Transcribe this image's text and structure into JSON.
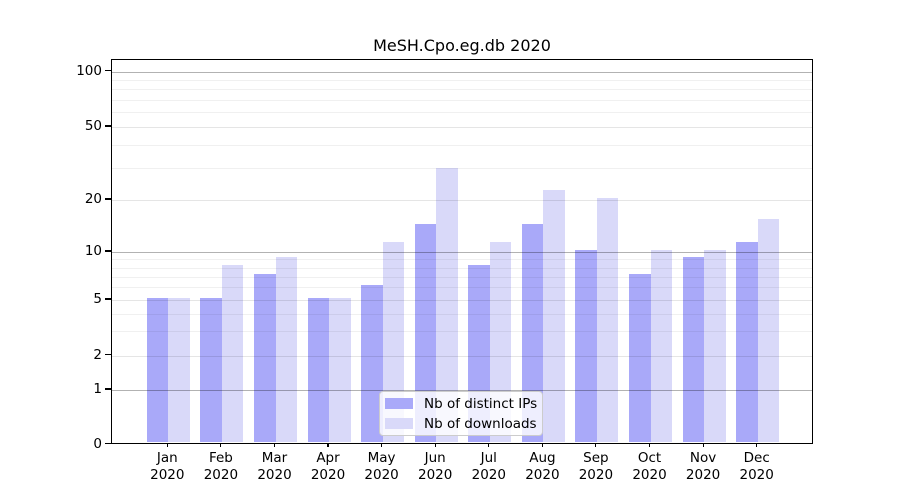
{
  "chart_data": {
    "type": "bar",
    "title": "MeSH.Cpo.eg.db 2020",
    "categories": [
      "Jan 2020",
      "Feb 2020",
      "Mar 2020",
      "Apr 2020",
      "May 2020",
      "Jun 2020",
      "Jul 2020",
      "Aug 2020",
      "Sep 2020",
      "Oct 2020",
      "Nov 2020",
      "Dec 2020"
    ],
    "series": [
      {
        "name": "Nb of distinct IPs",
        "color": "#a9a9f9",
        "values": [
          5,
          5,
          7,
          5,
          6,
          14,
          8,
          14,
          10,
          7,
          9,
          11
        ]
      },
      {
        "name": "Nb of downloads",
        "color": "#d9d9f9",
        "values": [
          5,
          8,
          9,
          5,
          11,
          29,
          11,
          22,
          20,
          10,
          10,
          15
        ]
      }
    ],
    "y_axis": {
      "scale": "log-like",
      "tick_labels": [
        "0",
        "1",
        "2",
        "5",
        "10",
        "20",
        "50",
        "100"
      ],
      "ticks": [
        0,
        1,
        2,
        5,
        10,
        20,
        50,
        100
      ],
      "minor_ticks": [
        3,
        4,
        6,
        7,
        8,
        9,
        30,
        40,
        60,
        70,
        80,
        90
      ],
      "ylim_top_label": "100"
    },
    "legend": {
      "labels": [
        "Nb of distinct IPs",
        "Nb of downloads"
      ]
    },
    "grid": "on",
    "legend_position": "inside-bottom-center"
  }
}
